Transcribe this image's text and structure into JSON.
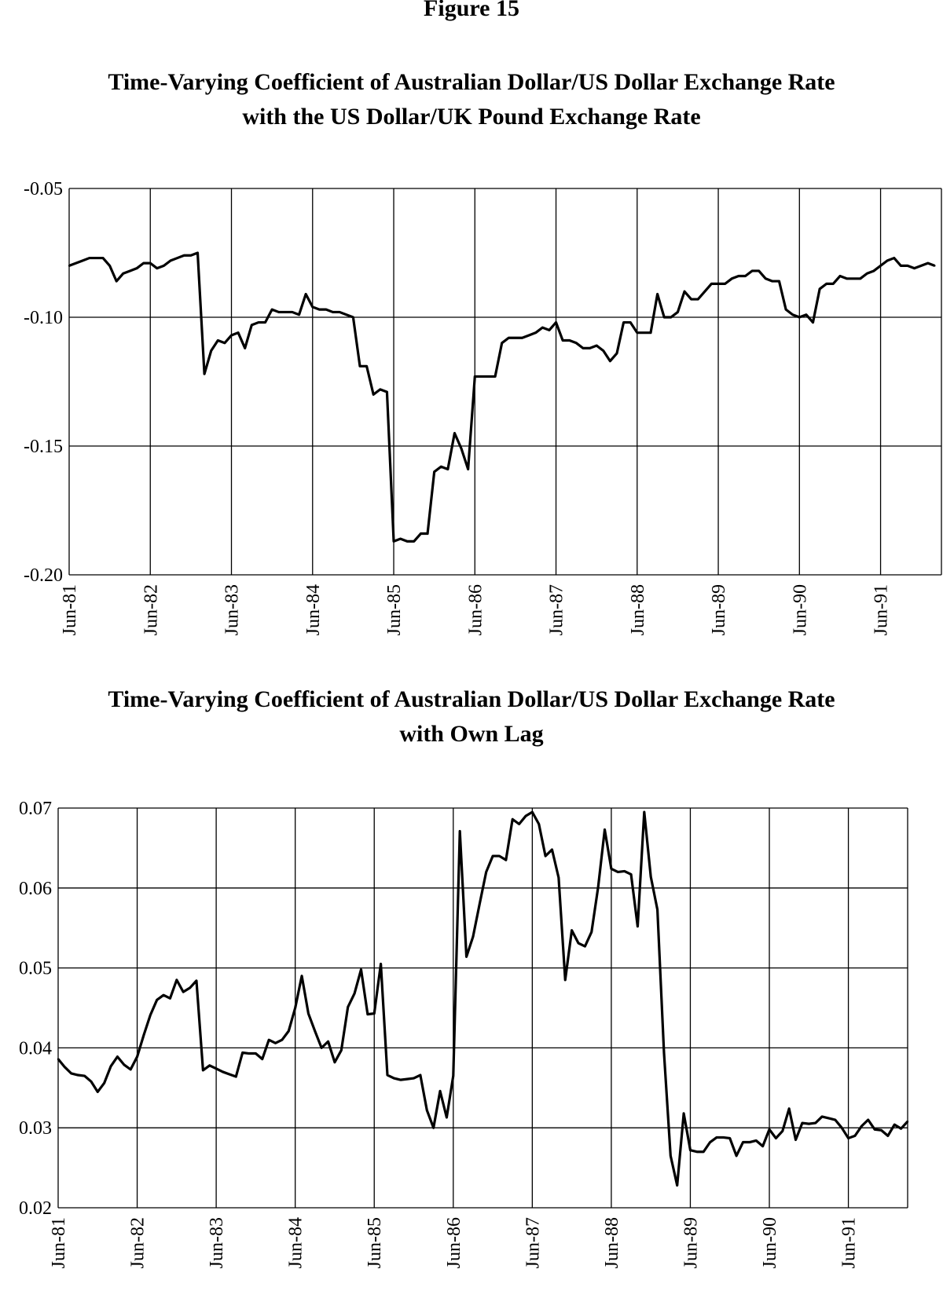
{
  "figure_label": "Figure 15",
  "chart_data": [
    {
      "type": "line",
      "title": [
        "Time-Varying Coefficient of Australian Dollar/US Dollar Exchange Rate",
        "with the US Dollar/UK Pound Exchange Rate"
      ],
      "xlabel": "",
      "ylabel": "",
      "ylim": [
        -0.2,
        -0.05
      ],
      "yticks": [
        -0.05,
        -0.1,
        -0.15,
        -0.2
      ],
      "ytick_labels": [
        "-0.05",
        "-0.10",
        "-0.15",
        "-0.20"
      ],
      "xtick_labels": [
        "Jun-81",
        "Jun-82",
        "Jun-83",
        "Jun-84",
        "Jun-85",
        "Jun-86",
        "Jun-87",
        "Jun-88",
        "Jun-89",
        "Jun-90",
        "Jun-91"
      ],
      "x_start": "Jun-81",
      "x_frequency": "monthly",
      "grid": true,
      "legend": false,
      "series": [
        {
          "color": "#000000",
          "values": [
            -0.08,
            -0.079,
            -0.078,
            -0.077,
            -0.077,
            -0.077,
            -0.08,
            -0.086,
            -0.083,
            -0.082,
            -0.081,
            -0.079,
            -0.079,
            -0.081,
            -0.08,
            -0.078,
            -0.077,
            -0.076,
            -0.076,
            -0.075,
            -0.122,
            -0.113,
            -0.109,
            -0.11,
            -0.107,
            -0.106,
            -0.112,
            -0.103,
            -0.102,
            -0.102,
            -0.097,
            -0.098,
            -0.098,
            -0.098,
            -0.099,
            -0.091,
            -0.096,
            -0.097,
            -0.097,
            -0.098,
            -0.098,
            -0.099,
            -0.1,
            -0.119,
            -0.119,
            -0.13,
            -0.128,
            -0.129,
            -0.187,
            -0.186,
            -0.187,
            -0.187,
            -0.184,
            -0.184,
            -0.16,
            -0.158,
            -0.159,
            -0.145,
            -0.151,
            -0.159,
            -0.123,
            -0.123,
            -0.123,
            -0.123,
            -0.11,
            -0.108,
            -0.108,
            -0.108,
            -0.107,
            -0.106,
            -0.104,
            -0.105,
            -0.102,
            -0.109,
            -0.109,
            -0.11,
            -0.112,
            -0.112,
            -0.111,
            -0.113,
            -0.117,
            -0.114,
            -0.102,
            -0.102,
            -0.106,
            -0.106,
            -0.106,
            -0.091,
            -0.1,
            -0.1,
            -0.098,
            -0.09,
            -0.093,
            -0.093,
            -0.09,
            -0.087,
            -0.087,
            -0.087,
            -0.085,
            -0.084,
            -0.084,
            -0.082,
            -0.082,
            -0.085,
            -0.086,
            -0.086,
            -0.097,
            -0.099,
            -0.1,
            -0.099,
            -0.102,
            -0.089,
            -0.087,
            -0.087,
            -0.084,
            -0.085,
            -0.085,
            -0.085,
            -0.083,
            -0.082,
            -0.08,
            -0.078,
            -0.077,
            -0.08,
            -0.08,
            -0.081,
            -0.08,
            -0.079,
            -0.08
          ]
        }
      ]
    },
    {
      "type": "line",
      "title": [
        "Time-Varying Coefficient of Australian Dollar/US Dollar Exchange Rate",
        "with Own Lag"
      ],
      "xlabel": "",
      "ylabel": "",
      "ylim": [
        0.02,
        0.07
      ],
      "yticks": [
        0.07,
        0.06,
        0.05,
        0.04,
        0.03,
        0.02
      ],
      "ytick_labels": [
        "0.07",
        "0.06",
        "0.05",
        "0.04",
        "0.03",
        "0.02"
      ],
      "xtick_labels": [
        "Jun-81",
        "Jun-82",
        "Jun-83",
        "Jun-84",
        "Jun-85",
        "Jun-86",
        "Jun-87",
        "Jun-88",
        "Jun-89",
        "Jun-90",
        "Jun-91"
      ],
      "x_start": "Jun-81",
      "x_frequency": "monthly",
      "grid": true,
      "legend": false,
      "series": [
        {
          "color": "#000000",
          "values": [
            0.0386,
            0.0376,
            0.0368,
            0.0366,
            0.0365,
            0.0358,
            0.0345,
            0.0356,
            0.0377,
            0.0389,
            0.0379,
            0.0373,
            0.0389,
            0.0416,
            0.0441,
            0.046,
            0.0466,
            0.0462,
            0.0485,
            0.047,
            0.0475,
            0.0484,
            0.0372,
            0.0378,
            0.0374,
            0.037,
            0.0367,
            0.0364,
            0.0394,
            0.0393,
            0.0393,
            0.0386,
            0.041,
            0.0406,
            0.041,
            0.0421,
            0.045,
            0.049,
            0.0443,
            0.0421,
            0.04,
            0.0408,
            0.0382,
            0.0397,
            0.0451,
            0.0468,
            0.0498,
            0.0442,
            0.0443,
            0.0505,
            0.0366,
            0.0362,
            0.036,
            0.0361,
            0.0362,
            0.0366,
            0.0322,
            0.03,
            0.0346,
            0.0313,
            0.0365,
            0.0671,
            0.0514,
            0.0539,
            0.058,
            0.062,
            0.064,
            0.064,
            0.0635,
            0.0686,
            0.068,
            0.069,
            0.0695,
            0.068,
            0.064,
            0.0648,
            0.0613,
            0.0485,
            0.0547,
            0.0531,
            0.0527,
            0.0545,
            0.0601,
            0.0673,
            0.0624,
            0.062,
            0.0621,
            0.0617,
            0.0552,
            0.0695,
            0.0614,
            0.0573,
            0.0394,
            0.0265,
            0.0228,
            0.0318,
            0.0272,
            0.027,
            0.027,
            0.0282,
            0.0288,
            0.0288,
            0.0287,
            0.0265,
            0.0282,
            0.0282,
            0.0284,
            0.0277,
            0.0298,
            0.0287,
            0.0296,
            0.0324,
            0.0285,
            0.0306,
            0.0305,
            0.0306,
            0.0314,
            0.0312,
            0.031,
            0.03,
            0.0287,
            0.029,
            0.0302,
            0.031,
            0.0298,
            0.0297,
            0.029,
            0.0304,
            0.0299,
            0.0308
          ]
        }
      ]
    }
  ]
}
